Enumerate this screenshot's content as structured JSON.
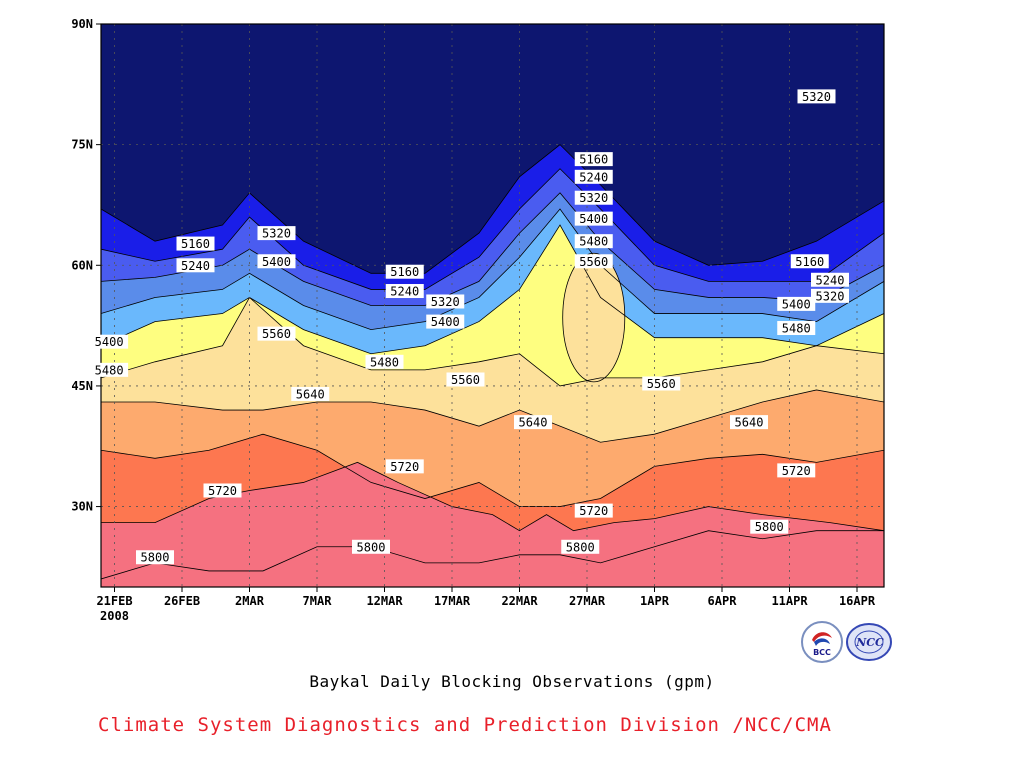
{
  "chart_data": {
    "type": "contour",
    "title": "",
    "caption": "Baykal Daily Blocking Observations (gpm)",
    "credit": "Climate System Diagnostics and Prediction Division /NCC/CMA",
    "x_tick_labels": [
      "21FEB",
      "26FEB",
      "2MAR",
      "7MAR",
      "12MAR",
      "17MAR",
      "22MAR",
      "27MAR",
      "1APR",
      "6APR",
      "11APR",
      "16APR"
    ],
    "x_year_label": "2008",
    "y_tick_labels": [
      "30N",
      "45N",
      "60N",
      "75N",
      "90N"
    ],
    "y_ticks": [
      30,
      45,
      60,
      75,
      90
    ],
    "ylim": [
      20,
      90
    ],
    "xlim_days": [
      0,
      58
    ],
    "grid": true,
    "contour_levels": [
      5160,
      5240,
      5320,
      5400,
      5480,
      5560,
      5640,
      5720,
      5800
    ],
    "fill_colors": [
      "#0d1670",
      "#1a1ee8",
      "#4a5cf0",
      "#5a8cea",
      "#6ab8fc",
      "#fefe80",
      "#fde19b",
      "#fdaa6e",
      "#fd7750",
      "#f57180"
    ],
    "contour_lines": [
      {
        "level": 5160,
        "points": [
          [
            0,
            67
          ],
          [
            4,
            63
          ],
          [
            9,
            65
          ],
          [
            11,
            69
          ],
          [
            15,
            63
          ],
          [
            20,
            59
          ],
          [
            24,
            59
          ],
          [
            28,
            64
          ],
          [
            31,
            71
          ],
          [
            34,
            75
          ],
          [
            37,
            70
          ],
          [
            41,
            63
          ],
          [
            45,
            60
          ],
          [
            49,
            60.5
          ],
          [
            53,
            63
          ],
          [
            58,
            68
          ]
        ]
      },
      {
        "level": 5240,
        "points": [
          [
            0,
            62
          ],
          [
            4,
            60.5
          ],
          [
            9,
            62
          ],
          [
            11,
            66
          ],
          [
            15,
            60
          ],
          [
            20,
            57
          ],
          [
            24,
            57
          ],
          [
            28,
            61
          ],
          [
            31,
            67
          ],
          [
            34,
            72
          ],
          [
            37,
            67
          ],
          [
            41,
            60
          ],
          [
            45,
            58
          ],
          [
            49,
            58
          ],
          [
            53,
            58
          ],
          [
            58,
            64
          ]
        ]
      },
      {
        "level": 5320,
        "points": [
          [
            0,
            58
          ],
          [
            4,
            58.5
          ],
          [
            9,
            60
          ],
          [
            11,
            62
          ],
          [
            15,
            58
          ],
          [
            20,
            55
          ],
          [
            24,
            55
          ],
          [
            28,
            58
          ],
          [
            31,
            64
          ],
          [
            34,
            69
          ],
          [
            37,
            63
          ],
          [
            41,
            57
          ],
          [
            45,
            56
          ],
          [
            49,
            56
          ],
          [
            53,
            55.5
          ],
          [
            58,
            60
          ]
        ]
      },
      {
        "level": 5400,
        "points": [
          [
            0,
            54
          ],
          [
            4,
            56
          ],
          [
            9,
            57
          ],
          [
            11,
            59
          ],
          [
            15,
            55
          ],
          [
            20,
            52
          ],
          [
            24,
            53
          ],
          [
            28,
            56
          ],
          [
            31,
            61
          ],
          [
            34,
            67
          ],
          [
            37,
            60
          ],
          [
            41,
            54
          ],
          [
            45,
            54
          ],
          [
            49,
            54
          ],
          [
            53,
            53
          ],
          [
            58,
            58
          ]
        ]
      },
      {
        "level": 5480,
        "points": [
          [
            0,
            50
          ],
          [
            4,
            53
          ],
          [
            9,
            54
          ],
          [
            11,
            56
          ],
          [
            15,
            52
          ],
          [
            20,
            49
          ],
          [
            24,
            50
          ],
          [
            28,
            53
          ],
          [
            31,
            57
          ],
          [
            34,
            65
          ],
          [
            37,
            56
          ],
          [
            41,
            51
          ],
          [
            45,
            51
          ],
          [
            49,
            51
          ],
          [
            53,
            50
          ],
          [
            58,
            54
          ]
        ]
      },
      {
        "level": 5560,
        "points": [
          [
            0,
            46
          ],
          [
            4,
            48
          ],
          [
            9,
            50
          ],
          [
            11,
            56
          ],
          [
            15,
            50
          ],
          [
            20,
            47
          ],
          [
            24,
            47
          ],
          [
            28,
            48
          ],
          [
            31,
            49
          ],
          [
            34,
            45
          ],
          [
            37,
            46
          ],
          [
            41,
            46
          ],
          [
            45,
            47
          ],
          [
            49,
            48
          ],
          [
            53,
            50
          ],
          [
            58,
            49
          ]
        ]
      },
      {
        "level": 5640,
        "points": [
          [
            0,
            43
          ],
          [
            4,
            43
          ],
          [
            9,
            42
          ],
          [
            12,
            42
          ],
          [
            16,
            43
          ],
          [
            20,
            43
          ],
          [
            24,
            42
          ],
          [
            28,
            40
          ],
          [
            31,
            42
          ],
          [
            34,
            40
          ],
          [
            37,
            38
          ],
          [
            41,
            39
          ],
          [
            45,
            41
          ],
          [
            49,
            43
          ],
          [
            53,
            44.5
          ],
          [
            58,
            43
          ]
        ]
      },
      {
        "level": 5720,
        "points": [
          [
            0,
            37
          ],
          [
            4,
            36
          ],
          [
            8,
            37
          ],
          [
            12,
            39
          ],
          [
            16,
            37
          ],
          [
            20,
            33
          ],
          [
            24,
            31
          ],
          [
            28,
            33
          ],
          [
            31,
            30
          ],
          [
            34,
            30
          ],
          [
            37,
            31
          ],
          [
            41,
            35
          ],
          [
            45,
            36
          ],
          [
            49,
            36.5
          ],
          [
            53,
            35.5
          ],
          [
            58,
            37
          ]
        ]
      },
      {
        "level": 5800,
        "points": [
          [
            0,
            28
          ],
          [
            4,
            28
          ],
          [
            8,
            31
          ],
          [
            11,
            32
          ],
          [
            15,
            33
          ],
          [
            19,
            35.5
          ],
          [
            22,
            33
          ],
          [
            26,
            30
          ],
          [
            29,
            29
          ],
          [
            31,
            27
          ],
          [
            33,
            29
          ],
          [
            35,
            27
          ],
          [
            38,
            28
          ],
          [
            41,
            28.5
          ],
          [
            45,
            30
          ],
          [
            49,
            29
          ],
          [
            54,
            28
          ],
          [
            58,
            27
          ]
        ]
      },
      {
        "level": 5800,
        "points": [
          [
            0,
            21
          ],
          [
            4,
            23
          ],
          [
            8,
            22
          ],
          [
            12,
            22
          ],
          [
            16,
            25
          ],
          [
            20,
            25
          ],
          [
            24,
            23
          ],
          [
            28,
            23
          ],
          [
            31,
            24
          ],
          [
            34,
            24
          ],
          [
            37,
            23
          ],
          [
            41,
            25
          ],
          [
            45,
            27
          ],
          [
            49,
            26
          ],
          [
            53,
            27
          ],
          [
            58,
            27
          ]
        ]
      }
    ],
    "enclosed_contours": [
      {
        "level": 5560,
        "center": [
          36.5,
          53.5
        ],
        "rx_days": 2.3,
        "ry_lat": 8
      }
    ],
    "contour_labels": [
      {
        "text": "5160",
        "x": 7,
        "y": 62.7
      },
      {
        "text": "5240",
        "x": 7,
        "y": 60
      },
      {
        "text": "5320",
        "x": 13,
        "y": 64
      },
      {
        "text": "5400",
        "x": 13,
        "y": 60.5
      },
      {
        "text": "5560",
        "x": 13,
        "y": 51.5
      },
      {
        "text": "5640",
        "x": 15.5,
        "y": 44
      },
      {
        "text": "5720",
        "x": 9,
        "y": 32
      },
      {
        "text": "5800",
        "x": 4,
        "y": 23.7
      },
      {
        "text": "5400",
        "x": 0.6,
        "y": 50.5
      },
      {
        "text": "5480",
        "x": 0.6,
        "y": 47
      },
      {
        "text": "5160",
        "x": 22.5,
        "y": 59.2
      },
      {
        "text": "5240",
        "x": 22.5,
        "y": 56.8
      },
      {
        "text": "5320",
        "x": 25.5,
        "y": 55.5
      },
      {
        "text": "5400",
        "x": 25.5,
        "y": 53
      },
      {
        "text": "5480",
        "x": 21,
        "y": 48
      },
      {
        "text": "5560",
        "x": 27,
        "y": 45.8
      },
      {
        "text": "5720",
        "x": 22.5,
        "y": 35
      },
      {
        "text": "5800",
        "x": 20,
        "y": 25
      },
      {
        "text": "5640",
        "x": 32,
        "y": 40.5
      },
      {
        "text": "5160",
        "x": 36.5,
        "y": 73.2
      },
      {
        "text": "5240",
        "x": 36.5,
        "y": 71
      },
      {
        "text": "5320",
        "x": 36.5,
        "y": 68.4
      },
      {
        "text": "5400",
        "x": 36.5,
        "y": 65.8
      },
      {
        "text": "5480",
        "x": 36.5,
        "y": 63
      },
      {
        "text": "5560",
        "x": 36.5,
        "y": 60.5
      },
      {
        "text": "5720",
        "x": 36.5,
        "y": 29.5
      },
      {
        "text": "5800",
        "x": 35.5,
        "y": 25
      },
      {
        "text": "5560",
        "x": 41.5,
        "y": 45.3
      },
      {
        "text": "5640",
        "x": 48,
        "y": 40.5
      },
      {
        "text": "5720",
        "x": 51.5,
        "y": 34.5
      },
      {
        "text": "5800",
        "x": 49.5,
        "y": 27.5
      },
      {
        "text": "5320",
        "x": 53,
        "y": 81
      },
      {
        "text": "5160",
        "x": 52.5,
        "y": 60.5
      },
      {
        "text": "5240",
        "x": 54,
        "y": 58.2
      },
      {
        "text": "5320",
        "x": 54,
        "y": 56.2
      },
      {
        "text": "5400",
        "x": 51.5,
        "y": 55.2
      },
      {
        "text": "5480",
        "x": 51.5,
        "y": 52.2
      }
    ]
  },
  "logos": [
    {
      "name": "bcc",
      "text": "BCC"
    },
    {
      "name": "ncc",
      "text": "NCC"
    }
  ]
}
